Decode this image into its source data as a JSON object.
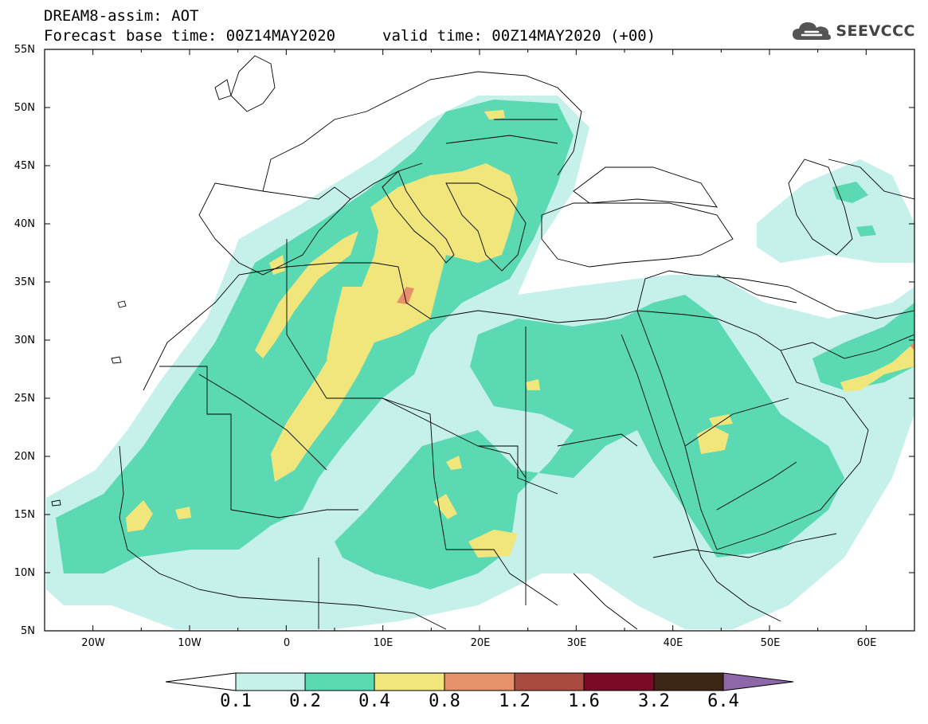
{
  "header": {
    "title_line1": "DREAM8-assim: AOT",
    "title_line2": "Forecast base time: 00Z14MAY2020",
    "valid": "valid time: 00Z14MAY2020 (+00)"
  },
  "logo": {
    "text": "SEEVCCC",
    "icon": "cloud-icon"
  },
  "map": {
    "lat_labels": [
      "55N",
      "50N",
      "45N",
      "40N",
      "35N",
      "30N",
      "25N",
      "20N",
      "15N",
      "10N",
      "5N"
    ],
    "lon_labels": [
      "20W",
      "10W",
      "0",
      "10E",
      "20E",
      "30E",
      "40E",
      "50E",
      "60E"
    ]
  },
  "colorbar": {
    "labels": [
      "0.1",
      "0.2",
      "0.4",
      "0.8",
      "1.2",
      "1.6",
      "3.2",
      "6.4"
    ],
    "colors": [
      "#c6f0ea",
      "#5ad9b3",
      "#f0e67c",
      "#e6916a",
      "#aa4b3f",
      "#7a0a25",
      "#3e2614",
      "#8e67a8"
    ]
  }
}
